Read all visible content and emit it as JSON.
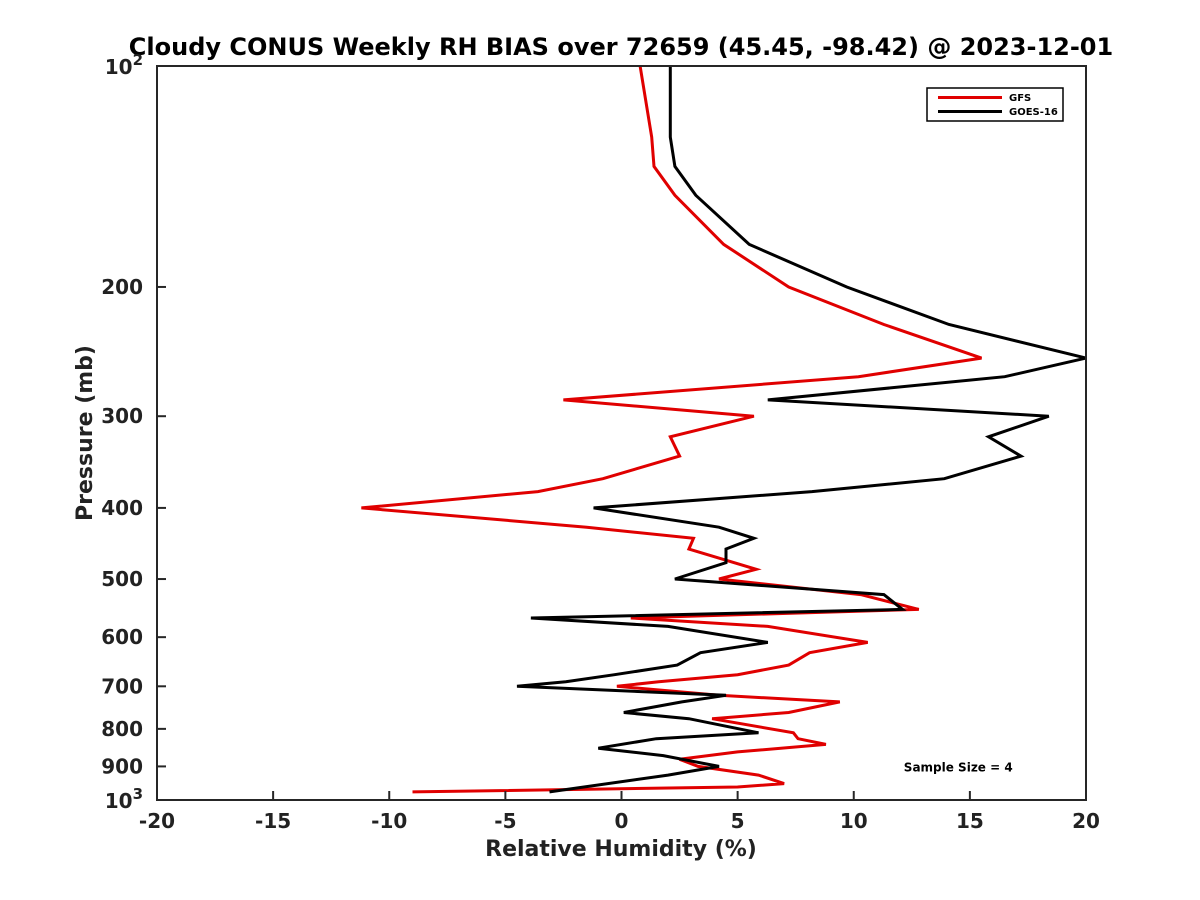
{
  "chart_data": {
    "type": "line",
    "title": "Cloudy CONUS Weekly RH BIAS over 72659 (45.45, -98.42) @ 2023-12-01",
    "xlabel": "Relative Humidity (%)",
    "ylabel": "Pressure (mb)",
    "xlim": [
      -20,
      20
    ],
    "ylim": [
      1000,
      100
    ],
    "y_scale": "log",
    "y_reversed": true,
    "grid": false,
    "legend_position": "top-right",
    "x_ticks": [
      -20,
      -15,
      -10,
      -5,
      0,
      5,
      10,
      15,
      20
    ],
    "x_tick_labels": [
      "-20",
      "-15",
      "-10",
      "-5",
      "0",
      "5",
      "10",
      "15",
      "20"
    ],
    "y_ticks": [
      200,
      300,
      400,
      500,
      600,
      700,
      800,
      900
    ],
    "y_tick_labels": [
      "200",
      "300",
      "400",
      "500",
      "600",
      "700",
      "800",
      "900"
    ],
    "y_tick_top": {
      "base": "10",
      "exp": "2"
    },
    "y_tick_bottom": {
      "base": "10",
      "exp": "3"
    },
    "series": [
      {
        "name": "GFS",
        "color": "#e00000",
        "points": [
          [
            0.8,
            100
          ],
          [
            1.3,
            125
          ],
          [
            1.4,
            137
          ],
          [
            2.3,
            150
          ],
          [
            4.4,
            175
          ],
          [
            7.2,
            200
          ],
          [
            11.3,
            225
          ],
          [
            15.5,
            250
          ],
          [
            10.2,
            265
          ],
          [
            -2.5,
            285
          ],
          [
            5.7,
            300
          ],
          [
            2.1,
            320
          ],
          [
            2.5,
            340
          ],
          [
            -0.8,
            365
          ],
          [
            -3.6,
            380
          ],
          [
            -11.2,
            400
          ],
          [
            -1.5,
            425
          ],
          [
            3.1,
            440
          ],
          [
            2.9,
            455
          ],
          [
            5.8,
            485
          ],
          [
            4.2,
            500
          ],
          [
            10.3,
            525
          ],
          [
            12.8,
            550
          ],
          [
            0.4,
            565
          ],
          [
            6.3,
            580
          ],
          [
            10.6,
            610
          ],
          [
            8.1,
            630
          ],
          [
            7.2,
            655
          ],
          [
            5.0,
            675
          ],
          [
            1.6,
            690
          ],
          [
            -0.2,
            700
          ],
          [
            4.2,
            720
          ],
          [
            9.4,
            735
          ],
          [
            7.2,
            760
          ],
          [
            3.9,
            775
          ],
          [
            7.4,
            810
          ],
          [
            7.6,
            825
          ],
          [
            8.8,
            840
          ],
          [
            5.0,
            860
          ],
          [
            2.5,
            880
          ],
          [
            3.3,
            900
          ],
          [
            5.9,
            925
          ],
          [
            7.0,
            950
          ],
          [
            5.0,
            960
          ],
          [
            -9.0,
            975
          ]
        ]
      },
      {
        "name": "GOES-16",
        "color": "#000000",
        "points": [
          [
            2.1,
            100
          ],
          [
            2.1,
            125
          ],
          [
            2.3,
            137
          ],
          [
            3.2,
            150
          ],
          [
            5.5,
            175
          ],
          [
            9.7,
            200
          ],
          [
            14.1,
            225
          ],
          [
            20.0,
            250
          ],
          [
            16.5,
            265
          ],
          [
            6.3,
            285
          ],
          [
            18.4,
            300
          ],
          [
            15.8,
            320
          ],
          [
            17.2,
            340
          ],
          [
            13.9,
            365
          ],
          [
            8.2,
            380
          ],
          [
            -1.2,
            400
          ],
          [
            4.2,
            425
          ],
          [
            5.7,
            440
          ],
          [
            4.5,
            455
          ],
          [
            4.5,
            475
          ],
          [
            2.3,
            500
          ],
          [
            11.3,
            525
          ],
          [
            12.1,
            550
          ],
          [
            -3.9,
            565
          ],
          [
            2.0,
            580
          ],
          [
            6.3,
            610
          ],
          [
            3.4,
            630
          ],
          [
            2.4,
            655
          ],
          [
            -0.3,
            675
          ],
          [
            -2.4,
            690
          ],
          [
            -4.5,
            700
          ],
          [
            4.5,
            720
          ],
          [
            2.6,
            735
          ],
          [
            0.1,
            760
          ],
          [
            2.9,
            775
          ],
          [
            5.9,
            810
          ],
          [
            1.5,
            825
          ],
          [
            -1.0,
            850
          ],
          [
            1.8,
            870
          ],
          [
            4.2,
            900
          ],
          [
            2.0,
            925
          ],
          [
            -3.1,
            975
          ]
        ]
      }
    ],
    "annotations": [
      {
        "text": "Sample Size = 4",
        "x": 14.5,
        "y": 900
      }
    ]
  }
}
